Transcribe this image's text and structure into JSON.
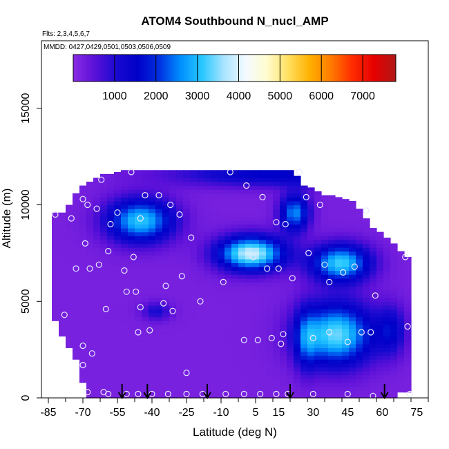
{
  "chart_data": {
    "type": "heatmap",
    "title": "ATOM4 Southbound N_nucl_AMP",
    "subtitle_flights": "Flts: 2,3,4,5,6,7",
    "subtitle_dates": "MMDD: 0427,0429,0501,0503,0506,0509",
    "xlabel": "Latitude (deg N)",
    "ylabel": "Altitude (m)",
    "xlim": [
      -88,
      80
    ],
    "ylim": [
      0,
      18500
    ],
    "x_tick_labels": [
      "-85",
      "-70",
      "-55",
      "-40",
      "-25",
      "-10",
      "5",
      "15",
      "30",
      "45",
      "60",
      "75"
    ],
    "y_tick_labels": [
      "0",
      "5000",
      "10000",
      "15000"
    ],
    "colorbar": {
      "range": [
        0,
        7800
      ],
      "tick_labels": [
        "1000",
        "2000",
        "3000",
        "4000",
        "5000",
        "6000",
        "7000"
      ],
      "colors": [
        "#8a2be2",
        "#5a10d8",
        "#1a0ad0",
        "#0000c8",
        "#0030e0",
        "#0090ff",
        "#28c8ff",
        "#a8e4ff",
        "#f4faff",
        "#fffcd0",
        "#ffe060",
        "#ffb000",
        "#ff7a00",
        "#ff2a00",
        "#e60000",
        "#b01818"
      ]
    },
    "grid": false,
    "field": {
      "background_value": 200,
      "lat_bins": [
        -82,
        -79,
        -76,
        -73,
        -70,
        -67,
        -64,
        -61,
        -58,
        -55,
        -52,
        -49,
        -46,
        -43,
        -40,
        -37,
        -34,
        -31,
        -28,
        -25,
        -22,
        -19,
        -16,
        -13,
        -10,
        -7,
        -4,
        -1,
        2,
        5,
        8,
        11,
        14,
        17,
        20,
        23,
        26,
        29,
        32,
        35,
        38,
        41,
        44,
        47,
        50,
        53,
        56,
        59,
        62,
        65,
        68,
        71
      ],
      "column_alt_top": [
        9600,
        9600,
        10000,
        10600,
        11000,
        11200,
        11400,
        11600,
        11600,
        11700,
        11800,
        11800,
        11800,
        11800,
        11800,
        11800,
        11800,
        11800,
        11800,
        11800,
        11800,
        11800,
        11800,
        11800,
        11800,
        11800,
        11800,
        11800,
        11800,
        11800,
        11800,
        11800,
        11800,
        11800,
        11800,
        11500,
        11000,
        10900,
        10700,
        10500,
        10500,
        10400,
        10300,
        10200,
        9800,
        9300,
        8800,
        8600,
        8300,
        8000,
        7600,
        7300
      ],
      "column_alt_bottom": [
        4000,
        3200,
        2600,
        2000,
        800,
        0,
        0,
        0,
        0,
        0,
        0,
        0,
        0,
        0,
        0,
        0,
        0,
        0,
        0,
        0,
        0,
        0,
        0,
        0,
        0,
        0,
        0,
        0,
        0,
        0,
        0,
        0,
        0,
        0,
        0,
        0,
        0,
        0,
        0,
        0,
        0,
        0,
        0,
        0,
        0,
        0,
        0,
        0,
        0,
        0,
        300,
        300
      ],
      "features": [
        {
          "lat": 14,
          "lat_half_width": 56,
          "alt": 11600,
          "alt_half_height": 800,
          "peak": 1400
        },
        {
          "lat": -45,
          "lat_half_width": 18,
          "alt": 9200,
          "alt_half_height": 1400,
          "peak": 2900
        },
        {
          "lat": -38,
          "lat_half_width": 8,
          "alt": 4500,
          "alt_half_height": 600,
          "peak": 900
        },
        {
          "lat": 3,
          "lat_half_width": 18,
          "alt": 7500,
          "alt_half_height": 1100,
          "peak": 3700
        },
        {
          "lat": 22,
          "lat_half_width": 8,
          "alt": 9600,
          "alt_half_height": 1200,
          "peak": 2400
        },
        {
          "lat": 42,
          "lat_half_width": 16,
          "alt": 7000,
          "alt_half_height": 1200,
          "peak": 3000
        },
        {
          "lat": 40,
          "lat_half_width": 20,
          "alt": 3300,
          "alt_half_height": 2000,
          "peak": 3200
        },
        {
          "lat": 64,
          "lat_half_width": 8,
          "alt": 3500,
          "alt_half_height": 1600,
          "peak": 1200
        },
        {
          "lat": 27,
          "lat_half_width": 6,
          "alt": 3000,
          "alt_half_height": 2000,
          "peak": 1200
        }
      ]
    },
    "observations": [
      {
        "lat": -82,
        "alt": 9500
      },
      {
        "lat": -78,
        "alt": 4300
      },
      {
        "lat": -75,
        "alt": 9300
      },
      {
        "lat": -73,
        "alt": 6700
      },
      {
        "lat": -70,
        "alt": 10300
      },
      {
        "lat": -70,
        "alt": 2700
      },
      {
        "lat": -70,
        "alt": 1700
      },
      {
        "lat": -69,
        "alt": 8000
      },
      {
        "lat": -68,
        "alt": 10000
      },
      {
        "lat": -67,
        "alt": 6700
      },
      {
        "lat": -66,
        "alt": 2300
      },
      {
        "lat": -64,
        "alt": 9800
      },
      {
        "lat": -63,
        "alt": 6900
      },
      {
        "lat": -62,
        "alt": 11300
      },
      {
        "lat": -60,
        "alt": 4600
      },
      {
        "lat": -59,
        "alt": 7600
      },
      {
        "lat": -58,
        "alt": 9000
      },
      {
        "lat": -55,
        "alt": 9600
      },
      {
        "lat": -52,
        "alt": 6600
      },
      {
        "lat": -51,
        "alt": 5500
      },
      {
        "lat": -49,
        "alt": 11700
      },
      {
        "lat": -48,
        "alt": 7300
      },
      {
        "lat": -47,
        "alt": 5500
      },
      {
        "lat": -46,
        "alt": 3400
      },
      {
        "lat": -45,
        "alt": 4700
      },
      {
        "lat": -45,
        "alt": 9300
      },
      {
        "lat": -43,
        "alt": 10500
      },
      {
        "lat": -41,
        "alt": 3500
      },
      {
        "lat": -37,
        "alt": 10500
      },
      {
        "lat": -35,
        "alt": 4900
      },
      {
        "lat": -34,
        "alt": 5800
      },
      {
        "lat": -32,
        "alt": 10000
      },
      {
        "lat": -31,
        "alt": 4500
      },
      {
        "lat": -28,
        "alt": 9500
      },
      {
        "lat": -27,
        "alt": 6300
      },
      {
        "lat": -25,
        "alt": 1300
      },
      {
        "lat": -23,
        "alt": 8300
      },
      {
        "lat": -19,
        "alt": 5000
      },
      {
        "lat": -9,
        "alt": 6000
      },
      {
        "lat": -6,
        "alt": 11700
      },
      {
        "lat": 0,
        "alt": 3000
      },
      {
        "lat": 1,
        "alt": 11000
      },
      {
        "lat": 4,
        "alt": 7300
      },
      {
        "lat": 6,
        "alt": 3000
      },
      {
        "lat": 8,
        "alt": 10400
      },
      {
        "lat": 10,
        "alt": 6700
      },
      {
        "lat": 12,
        "alt": 3100
      },
      {
        "lat": 14,
        "alt": 9100
      },
      {
        "lat": 15,
        "alt": 6700
      },
      {
        "lat": 16,
        "alt": 2800
      },
      {
        "lat": 17,
        "alt": 3300
      },
      {
        "lat": 18,
        "alt": 9000
      },
      {
        "lat": 21,
        "alt": 6200
      },
      {
        "lat": 24,
        "alt": 11700
      },
      {
        "lat": 27,
        "alt": 10400
      },
      {
        "lat": 28,
        "alt": 7500
      },
      {
        "lat": 30,
        "alt": 3100
      },
      {
        "lat": 33,
        "alt": 10000
      },
      {
        "lat": 35,
        "alt": 6900
      },
      {
        "lat": 37,
        "alt": 6000
      },
      {
        "lat": 37,
        "alt": 3400
      },
      {
        "lat": 43,
        "alt": 6500
      },
      {
        "lat": 45,
        "alt": 2900
      },
      {
        "lat": 48,
        "alt": 6800
      },
      {
        "lat": 51,
        "alt": 3400
      },
      {
        "lat": 53,
        "alt": 9700
      },
      {
        "lat": 55,
        "alt": 3400
      },
      {
        "lat": 57,
        "alt": 5300
      },
      {
        "lat": 70,
        "alt": 7300
      },
      {
        "lat": 71,
        "alt": 3700
      },
      {
        "lat": -68,
        "alt": 300
      },
      {
        "lat": -61,
        "alt": 300
      },
      {
        "lat": -59,
        "alt": 200
      },
      {
        "lat": -51,
        "alt": 200
      },
      {
        "lat": -46,
        "alt": 200
      },
      {
        "lat": -40,
        "alt": 200
      },
      {
        "lat": -33,
        "alt": 200
      },
      {
        "lat": -25,
        "alt": 200
      },
      {
        "lat": -18,
        "alt": 200
      },
      {
        "lat": -8,
        "alt": 200
      },
      {
        "lat": 0,
        "alt": 200
      },
      {
        "lat": 7,
        "alt": 200
      },
      {
        "lat": 14,
        "alt": 200
      },
      {
        "lat": 19,
        "alt": 200
      },
      {
        "lat": 30,
        "alt": 200
      },
      {
        "lat": 45,
        "alt": 200
      },
      {
        "lat": 56,
        "alt": 100
      },
      {
        "lat": 72,
        "alt": 200
      }
    ],
    "flight_markers_lat": [
      -53,
      -42,
      -16,
      20,
      61
    ]
  }
}
